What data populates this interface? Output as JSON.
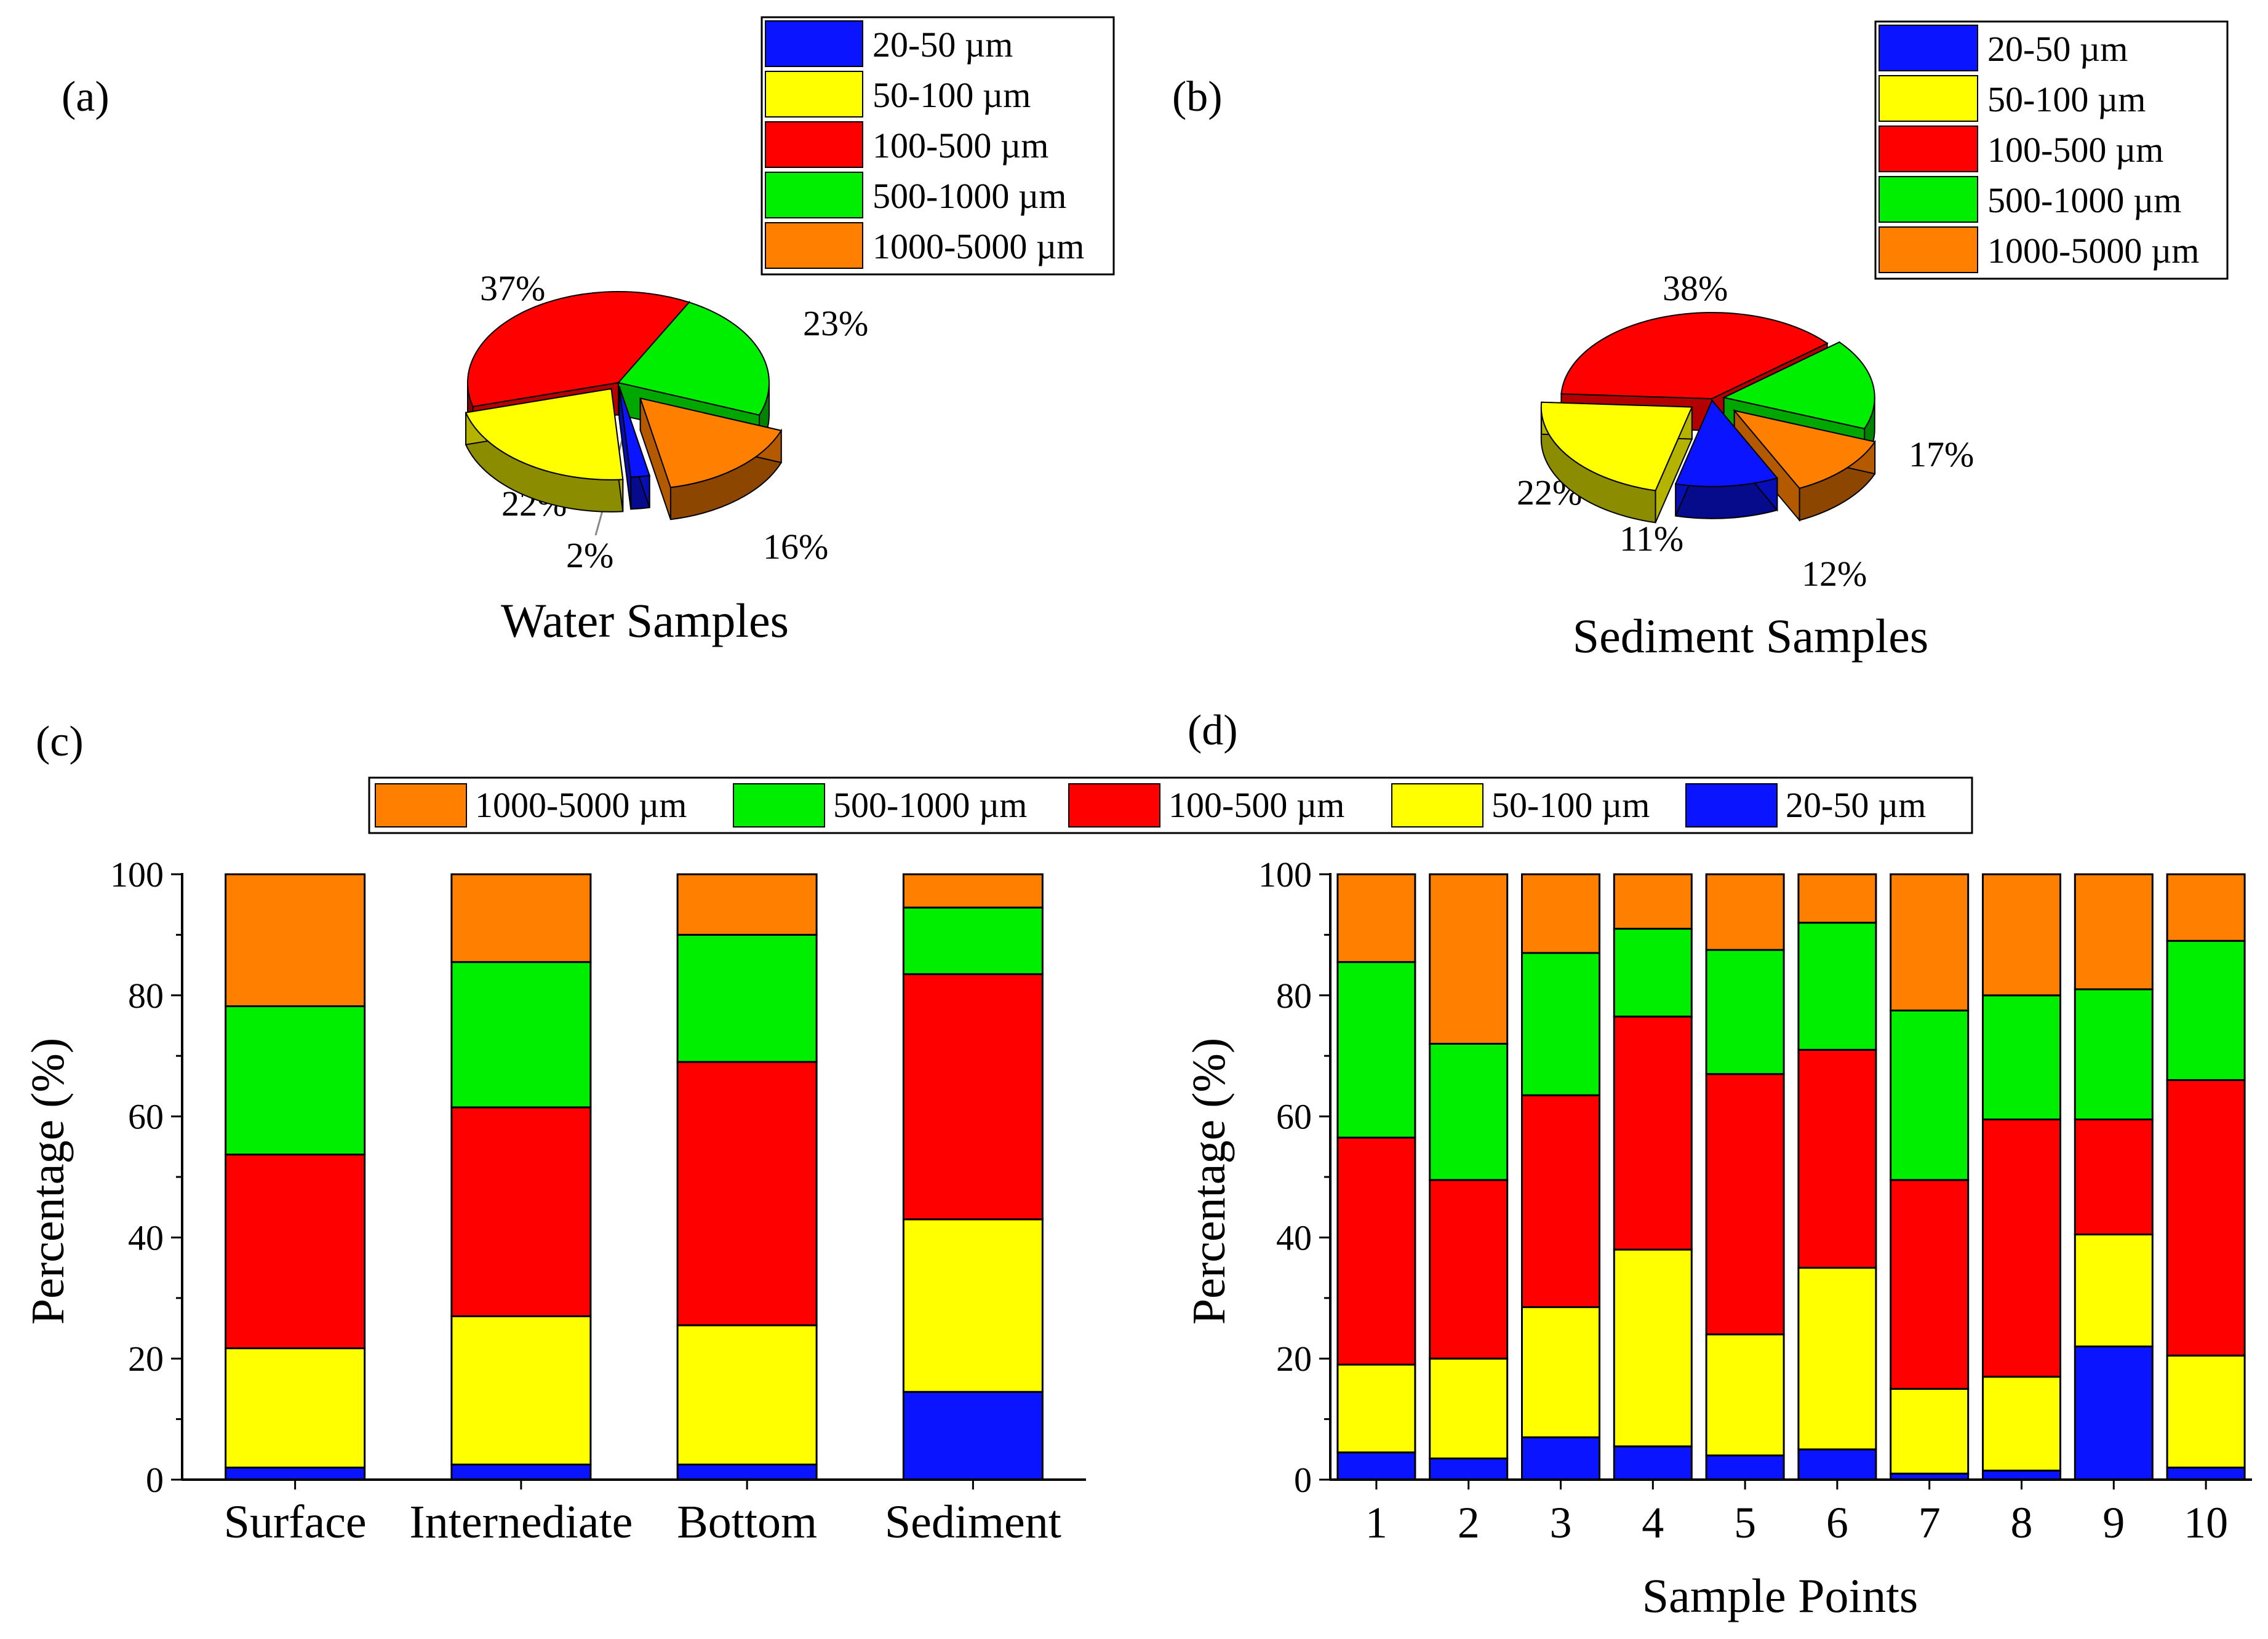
{
  "colors": {
    "20-50": "#0a14ff",
    "50-100": "#ffff00",
    "100-500": "#ff0000",
    "500-1000": "#00ee00",
    "1000-5000": "#ff8000"
  },
  "size_classes": [
    "20-50 µm",
    "50-100 µm",
    "100-500 µm",
    "500-1000 µm",
    "1000-5000 µm"
  ],
  "panels": {
    "a_label": "(a)",
    "b_label": "(b)",
    "c_label": "(c)",
    "d_label": "(d)"
  },
  "chart_data": [
    {
      "id": "a",
      "type": "pie",
      "title": "Water Samples",
      "slices": [
        {
          "label": "20-50 µm",
          "value": 2,
          "text": "2%"
        },
        {
          "label": "50-100 µm",
          "value": 22,
          "text": "22%"
        },
        {
          "label": "100-500 µm",
          "value": 37,
          "text": "37%"
        },
        {
          "label": "500-1000 µm",
          "value": 23,
          "text": "23%"
        },
        {
          "label": "1000-5000 µm",
          "value": 16,
          "text": "16%"
        }
      ],
      "legend": [
        "20-50 µm",
        "50-100 µm",
        "100-500 µm",
        "500-1000 µm",
        "1000-5000 µm"
      ]
    },
    {
      "id": "b",
      "type": "pie",
      "title": "Sediment Samples",
      "slices": [
        {
          "label": "20-50 µm",
          "value": 11,
          "text": "11%"
        },
        {
          "label": "50-100 µm",
          "value": 22,
          "text": "22%"
        },
        {
          "label": "100-500 µm",
          "value": 38,
          "text": "38%"
        },
        {
          "label": "500-1000 µm",
          "value": 17,
          "text": "17%"
        },
        {
          "label": "1000-5000 µm",
          "value": 12,
          "text": "12%"
        }
      ],
      "legend": [
        "20-50 µm",
        "50-100 µm",
        "100-500 µm",
        "500-1000 µm",
        "1000-5000 µm"
      ]
    },
    {
      "id": "c",
      "type": "bar",
      "stacked": true,
      "categories": [
        "Surface",
        "Internediate",
        "Bottom",
        "Sediment"
      ],
      "series": [
        {
          "name": "20-50 µm",
          "values": [
            2,
            2.5,
            2.5,
            14.5
          ]
        },
        {
          "name": "50-100 µm",
          "values": [
            19.7,
            24.5,
            23,
            28.5
          ]
        },
        {
          "name": "100-500 µm",
          "values": [
            32,
            34.5,
            43.5,
            40.5
          ]
        },
        {
          "name": "500-1000 µm",
          "values": [
            24.5,
            24,
            21,
            11
          ]
        },
        {
          "name": "1000-5000 µm",
          "values": [
            21.8,
            14.5,
            10,
            5.5
          ]
        }
      ],
      "xlabel": "",
      "ylabel": "Percentage (%)",
      "ylim": [
        0,
        100
      ],
      "yticks": [
        0,
        20,
        40,
        60,
        80,
        100
      ]
    },
    {
      "id": "d",
      "type": "bar",
      "stacked": true,
      "categories": [
        "1",
        "2",
        "3",
        "4",
        "5",
        "6",
        "7",
        "8",
        "9",
        "10"
      ],
      "series": [
        {
          "name": "20-50 µm",
          "values": [
            4.5,
            3.5,
            7,
            5.5,
            4,
            5,
            1,
            1.5,
            22,
            2
          ]
        },
        {
          "name": "50-100 µm",
          "values": [
            14.5,
            16.5,
            21.5,
            32.5,
            20,
            30,
            14,
            15.5,
            18.5,
            18.5
          ]
        },
        {
          "name": "100-500 µm",
          "values": [
            37.5,
            29.5,
            35,
            38.5,
            43,
            36,
            34.5,
            42.5,
            19,
            45.5
          ]
        },
        {
          "name": "500-1000 µm",
          "values": [
            29,
            22.5,
            23.5,
            14.5,
            20.5,
            21,
            28,
            20.5,
            21.5,
            23
          ]
        },
        {
          "name": "1000-5000 µm",
          "values": [
            14.5,
            28,
            13,
            9,
            12.5,
            8,
            22.5,
            20,
            19,
            11
          ]
        }
      ],
      "xlabel": "Sample Points",
      "ylabel": "Percentage (%)",
      "ylim": [
        0,
        100
      ],
      "yticks": [
        0,
        20,
        40,
        60,
        80,
        100
      ]
    }
  ],
  "shared_legend": [
    "1000-5000 µm",
    "500-1000 µm",
    "100-500 µm",
    "50-100 µm",
    "20-50 µm"
  ]
}
